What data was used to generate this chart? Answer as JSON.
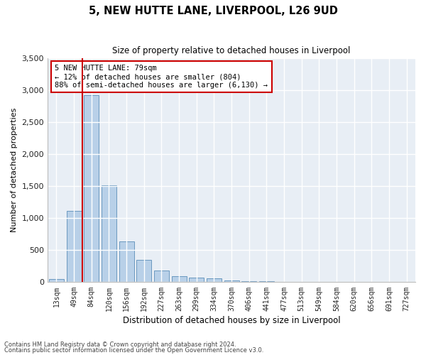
{
  "title": "5, NEW HUTTE LANE, LIVERPOOL, L26 9UD",
  "subtitle": "Size of property relative to detached houses in Liverpool",
  "xlabel": "Distribution of detached houses by size in Liverpool",
  "ylabel": "Number of detached properties",
  "bar_labels": [
    "13sqm",
    "49sqm",
    "84sqm",
    "120sqm",
    "156sqm",
    "192sqm",
    "227sqm",
    "263sqm",
    "299sqm",
    "334sqm",
    "370sqm",
    "406sqm",
    "441sqm",
    "477sqm",
    "513sqm",
    "549sqm",
    "584sqm",
    "620sqm",
    "656sqm",
    "691sqm",
    "727sqm"
  ],
  "bar_values": [
    50,
    1110,
    2920,
    1510,
    640,
    345,
    185,
    95,
    75,
    55,
    30,
    18,
    12,
    8,
    5,
    3,
    3,
    2,
    1,
    1,
    0
  ],
  "bar_color": "#b8d0e8",
  "bar_edge_color": "#5b8db8",
  "background_color": "#e8eef5",
  "grid_color": "#ffffff",
  "ylim": [
    0,
    3500
  ],
  "yticks": [
    0,
    500,
    1000,
    1500,
    2000,
    2500,
    3000,
    3500
  ],
  "property_line_x": 1.5,
  "annotation_text": "5 NEW HUTTE LANE: 79sqm\n← 12% of detached houses are smaller (804)\n88% of semi-detached houses are larger (6,130) →",
  "annotation_box_color": "#ffffff",
  "annotation_border_color": "#cc0000",
  "line_color": "#cc0000",
  "footnote1": "Contains HM Land Registry data © Crown copyright and database right 2024.",
  "footnote2": "Contains public sector information licensed under the Open Government Licence v3.0."
}
